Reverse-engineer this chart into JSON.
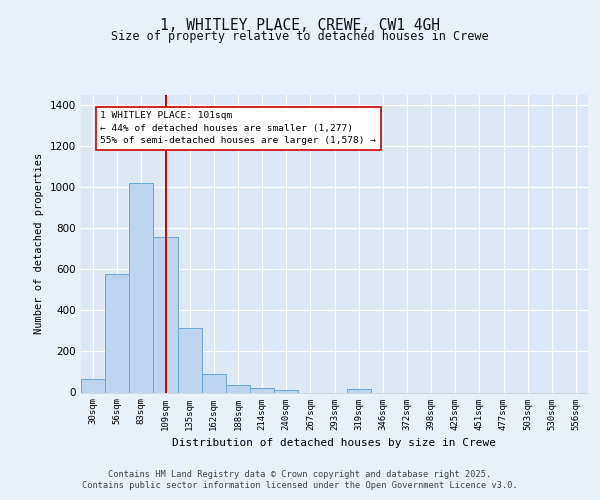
{
  "title": "1, WHITLEY PLACE, CREWE, CW1 4GH",
  "subtitle": "Size of property relative to detached houses in Crewe",
  "xlabel": "Distribution of detached houses by size in Crewe",
  "ylabel": "Number of detached properties",
  "bar_labels": [
    "30sqm",
    "56sqm",
    "83sqm",
    "109sqm",
    "135sqm",
    "162sqm",
    "188sqm",
    "214sqm",
    "240sqm",
    "267sqm",
    "293sqm",
    "319sqm",
    "346sqm",
    "372sqm",
    "398sqm",
    "425sqm",
    "451sqm",
    "477sqm",
    "503sqm",
    "530sqm",
    "556sqm"
  ],
  "bar_values": [
    65,
    580,
    1020,
    760,
    315,
    90,
    35,
    20,
    12,
    0,
    0,
    15,
    0,
    0,
    0,
    0,
    0,
    0,
    0,
    0,
    0
  ],
  "bar_color": "#bcd4ee",
  "bar_edge_color": "#6aaad4",
  "vline_x": 3.0,
  "vline_color": "#cc0000",
  "annotation_text": "1 WHITLEY PLACE: 101sqm\n← 44% of detached houses are smaller (1,277)\n55% of semi-detached houses are larger (1,578) →",
  "annotation_box_color": "#ffffff",
  "annotation_box_edge": "#cc0000",
  "ylim": [
    0,
    1450
  ],
  "yticks": [
    0,
    200,
    400,
    600,
    800,
    1000,
    1200,
    1400
  ],
  "bg_color": "#dce8f5",
  "fig_color": "#e8f0fa",
  "footer_line1": "Contains HM Land Registry data © Crown copyright and database right 2025.",
  "footer_line2": "Contains public sector information licensed under the Open Government Licence v3.0."
}
